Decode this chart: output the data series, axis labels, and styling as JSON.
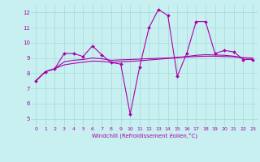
{
  "xlabel": "Windchill (Refroidissement éolien,°C)",
  "background_color": "#c8f0f0",
  "grid_color": "#aadddd",
  "line_color": "#aa00aa",
  "xlim": [
    -0.5,
    23.5
  ],
  "ylim": [
    4.5,
    12.5
  ],
  "xticks": [
    0,
    1,
    2,
    3,
    4,
    5,
    6,
    7,
    8,
    9,
    10,
    11,
    12,
    13,
    14,
    15,
    16,
    17,
    18,
    19,
    20,
    21,
    22,
    23
  ],
  "yticks": [
    5,
    6,
    7,
    8,
    9,
    10,
    11,
    12
  ],
  "series1_x": [
    0,
    1,
    2,
    3,
    4,
    5,
    6,
    7,
    8,
    9,
    10,
    11,
    12,
    13,
    14,
    15,
    16,
    17,
    18,
    19,
    20,
    21,
    22,
    23
  ],
  "series1_y": [
    7.5,
    8.1,
    8.3,
    9.3,
    9.3,
    9.1,
    9.8,
    9.2,
    8.7,
    8.6,
    5.3,
    8.4,
    11.0,
    12.2,
    11.8,
    7.8,
    9.3,
    11.4,
    11.4,
    9.3,
    9.5,
    9.4,
    8.9,
    8.9
  ],
  "series2_x": [
    0,
    1,
    2,
    3,
    4,
    5,
    6,
    7,
    8,
    9,
    10,
    11,
    12,
    13,
    14,
    15,
    16,
    17,
    18,
    19,
    20,
    21,
    22,
    23
  ],
  "series2_y": [
    7.5,
    8.1,
    8.3,
    8.55,
    8.65,
    8.72,
    8.8,
    8.78,
    8.72,
    8.75,
    8.78,
    8.82,
    8.87,
    8.92,
    8.97,
    9.02,
    9.07,
    9.1,
    9.12,
    9.12,
    9.1,
    9.08,
    9.0,
    8.98
  ],
  "series3_x": [
    0,
    1,
    2,
    3,
    4,
    5,
    6,
    7,
    8,
    9,
    10,
    11,
    12,
    13,
    14,
    15,
    16,
    17,
    18,
    19,
    20,
    21,
    22,
    23
  ],
  "series3_y": [
    7.5,
    8.1,
    8.3,
    8.75,
    8.85,
    8.9,
    9.0,
    8.95,
    8.85,
    8.88,
    8.9,
    8.93,
    8.96,
    8.98,
    9.0,
    9.04,
    9.1,
    9.18,
    9.22,
    9.2,
    9.18,
    9.12,
    9.02,
    9.0
  ]
}
